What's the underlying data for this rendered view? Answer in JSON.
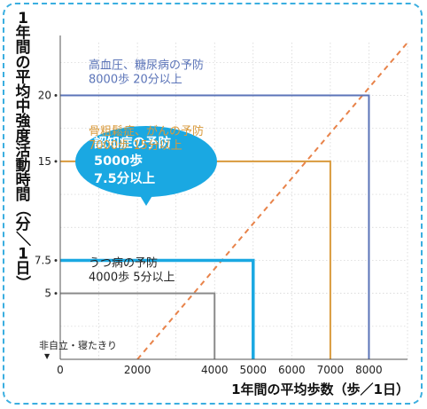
{
  "chart_data": {
    "type": "line",
    "title": "",
    "xlabel": "1年間の平均歩数（歩／1日）",
    "ylabel": "1年間の平均中強度活動時間（分／1日）",
    "xlim": [
      0,
      9000
    ],
    "ylim": [
      0,
      24
    ],
    "x_ticks": [
      0,
      2000,
      4000,
      5000,
      6000,
      7000,
      8000
    ],
    "y_ticks": [
      {
        "value": 5,
        "label": "5"
      },
      {
        "value": 7.5,
        "label": "7.5"
      },
      {
        "value": 15,
        "label": "15"
      },
      {
        "value": 20,
        "label": "20"
      }
    ],
    "trend_line": {
      "points": [
        [
          2000,
          0
        ],
        [
          9000,
          24
        ]
      ],
      "color": "#e8834a",
      "style": "dashed"
    },
    "baseline_note": "非自立・寝たきり",
    "series": [
      {
        "steps": 4000,
        "minutes": 5,
        "color": "#8a8a8a",
        "label_lines": [
          "うつ病の予防",
          "4000歩 5分以上"
        ],
        "label_color": "#222222"
      },
      {
        "steps": 5000,
        "minutes": 7.5,
        "color": "#1aa8e2",
        "label_lines": [
          "認知症の予防",
          "5000歩",
          "7.5分以上"
        ],
        "label_color": "#ffffff",
        "callout": true
      },
      {
        "steps": 7000,
        "minutes": 15,
        "color": "#d99a3c",
        "label_lines": [
          "骨粗鬆症、がんの予防",
          "7000歩 15分以上"
        ],
        "label_color": "#d99a3c"
      },
      {
        "steps": 8000,
        "minutes": 20,
        "color": "#5b74b8",
        "label_lines": [
          "高血圧、糖尿病の予防",
          "8000歩 20分以上"
        ],
        "label_color": "#5b74b8"
      }
    ]
  }
}
